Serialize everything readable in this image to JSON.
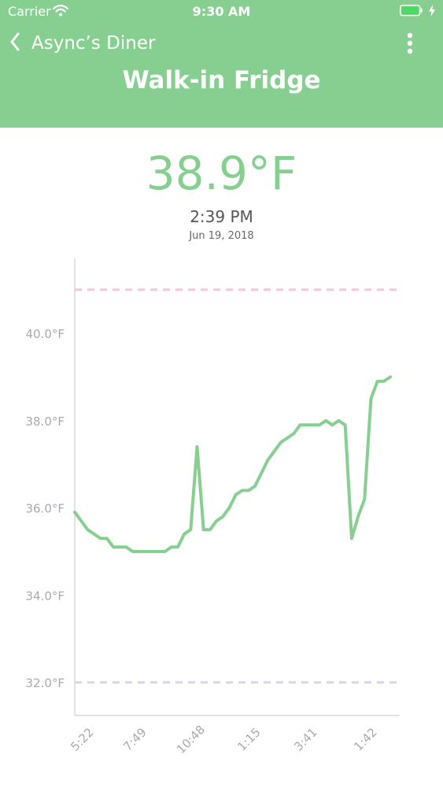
{
  "status_bar": {
    "carrier": "Carrier",
    "time": "9:30 AM",
    "wifi_icon": "wifi-icon",
    "battery_icon": "battery-icon",
    "charging_icon": "bolt-icon"
  },
  "nav": {
    "back_label": "Async’s Diner",
    "back_icon": "chevron-left-icon",
    "more_icon": "vertical-dots-icon"
  },
  "title": "Walk-in Fridge",
  "reading": {
    "value": "38.9°F",
    "time": "2:39 PM",
    "date": "Jun 19, 2018"
  },
  "colors": {
    "header": "#86cf90",
    "line": "#86cf90",
    "upper_threshold": "#f7c8d4",
    "lower_threshold": "#d7d4f2",
    "axis_text": "#a8a8b0"
  },
  "chart_data": {
    "type": "line",
    "title": "",
    "xlabel": "",
    "ylabel": "",
    "ylim": [
      31.0,
      41.8
    ],
    "y_ticks": [
      {
        "value": 32,
        "label": "32.0°F"
      },
      {
        "value": 34,
        "label": "34.0°F"
      },
      {
        "value": 36,
        "label": "36.0°F"
      },
      {
        "value": 38,
        "label": "38.0°F"
      },
      {
        "value": 40,
        "label": "40.0°F"
      }
    ],
    "x_tick_labels": [
      "5:22",
      "7:49",
      "10:48",
      "1:15",
      "3:41",
      "1:42"
    ],
    "thresholds": {
      "upper": 41.0,
      "lower": 32.0
    },
    "grid": false,
    "legend": "none",
    "series": [
      {
        "values": [
          35.9,
          35.7,
          35.5,
          35.4,
          35.3,
          35.3,
          35.1,
          35.1,
          35.1,
          35.0,
          35.0,
          35.0,
          35.0,
          35.0,
          35.0,
          35.1,
          35.1,
          35.4,
          35.5,
          37.4,
          35.5,
          35.5,
          35.7,
          35.8,
          36.0,
          36.3,
          36.4,
          36.4,
          36.5,
          36.8,
          37.1,
          37.3,
          37.5,
          37.6,
          37.7,
          37.9,
          37.9,
          37.9,
          37.9,
          38.0,
          37.9,
          38.0,
          37.9,
          35.3,
          35.8,
          36.2,
          38.5,
          38.9,
          38.9,
          39.0
        ]
      }
    ]
  }
}
